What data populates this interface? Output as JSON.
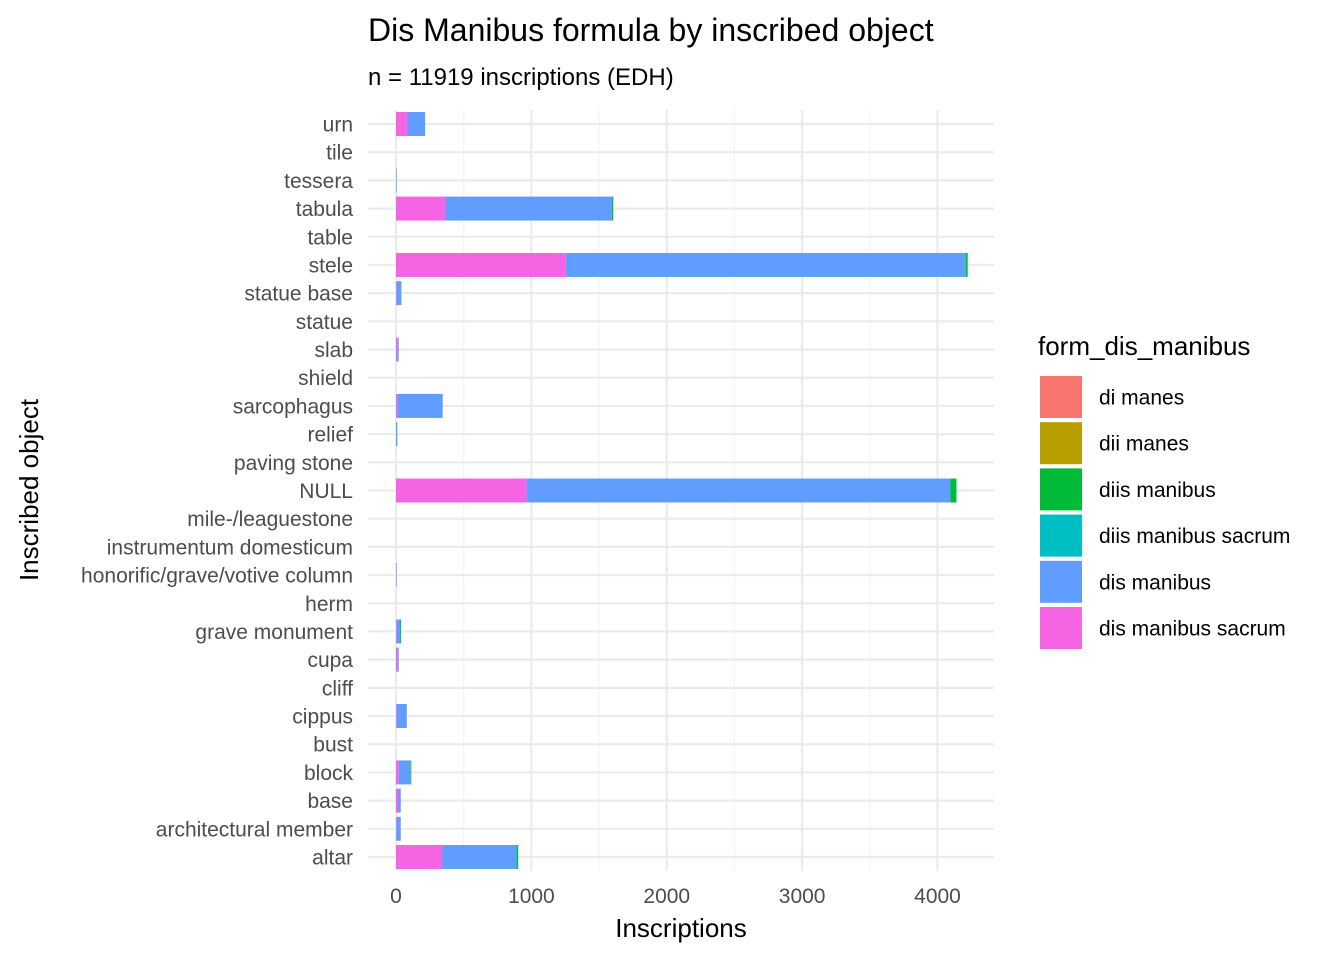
{
  "chart_data": {
    "type": "bar",
    "orientation": "horizontal",
    "stacked": true,
    "title": "Dis Manibus formula by inscribed object",
    "subtitle": "n = 11919 inscriptions (EDH)",
    "xlabel": "Inscriptions",
    "ylabel": "Inscribed object",
    "xlim": [
      0,
      4400
    ],
    "x_ticks": [
      0,
      1000,
      2000,
      3000,
      4000
    ],
    "x_tick_labels": [
      "0",
      "1000",
      "2000",
      "3000",
      "4000"
    ],
    "grid": true,
    "legend": {
      "title": "form_dis_manibus",
      "position": "right"
    },
    "categories": [
      "altar",
      "architectural member",
      "base",
      "block",
      "bust",
      "cippus",
      "cliff",
      "cupa",
      "grave monument",
      "herm",
      "honorific/grave/votive column",
      "instrumentum domesticum",
      "mile-/leaguestone",
      "NULL",
      "paving stone",
      "relief",
      "sarcophagus",
      "shield",
      "slab",
      "statue",
      "statue base",
      "stele",
      "table",
      "tabula",
      "tessera",
      "tile",
      "urn"
    ],
    "series": [
      {
        "name": "di manes",
        "color": "#F8766D",
        "values": [
          0,
          0,
          0,
          0,
          0,
          0,
          0,
          0,
          0,
          0,
          0,
          0,
          0,
          0,
          0,
          0,
          0,
          0,
          0,
          0,
          0,
          0,
          0,
          0,
          0,
          0,
          0
        ]
      },
      {
        "name": "dii manes",
        "color": "#B79F00",
        "values": [
          0,
          0,
          0,
          0,
          0,
          0,
          0,
          0,
          0,
          0,
          0,
          0,
          0,
          0,
          0,
          0,
          0,
          0,
          0,
          0,
          0,
          0,
          0,
          0,
          0,
          0,
          0
        ]
      },
      {
        "name": "diis manibus",
        "color": "#00BA38",
        "values": [
          10,
          0,
          0,
          5,
          0,
          0,
          0,
          0,
          5,
          0,
          0,
          0,
          0,
          45,
          0,
          0,
          0,
          0,
          0,
          0,
          0,
          15,
          0,
          10,
          0,
          0,
          0
        ]
      },
      {
        "name": "diis manibus sacrum",
        "color": "#00BFC4",
        "values": [
          3,
          0,
          0,
          3,
          0,
          0,
          0,
          0,
          3,
          0,
          0,
          0,
          0,
          0,
          0,
          0,
          0,
          0,
          0,
          0,
          0,
          3,
          0,
          0,
          0,
          0,
          0
        ]
      },
      {
        "name": "dis manibus",
        "color": "#619CFF",
        "values": [
          550,
          30,
          20,
          85,
          0,
          75,
          0,
          10,
          25,
          0,
          5,
          0,
          0,
          3130,
          0,
          10,
          335,
          0,
          10,
          0,
          35,
          2950,
          0,
          1230,
          5,
          0,
          130
        ]
      },
      {
        "name": "dis manibus sacrum",
        "color": "#F564E3",
        "values": [
          340,
          5,
          15,
          20,
          0,
          5,
          0,
          10,
          5,
          0,
          0,
          0,
          0,
          965,
          0,
          0,
          10,
          0,
          10,
          0,
          5,
          1255,
          0,
          365,
          0,
          0,
          85
        ]
      }
    ]
  }
}
